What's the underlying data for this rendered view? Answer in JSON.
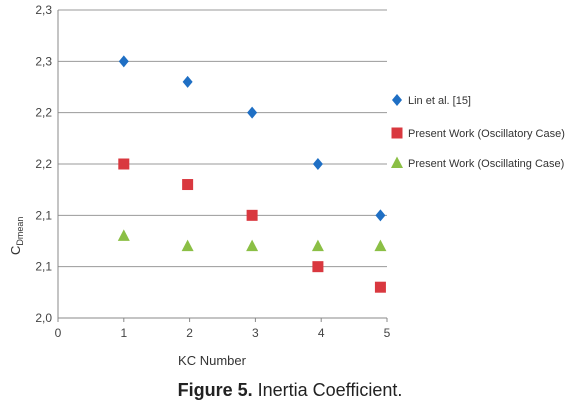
{
  "chart_data": {
    "type": "scatter",
    "xlabel": "KC Number",
    "ylabel_main": "C",
    "ylabel_sub": "Dmean",
    "xlim": [
      0,
      5
    ],
    "ylim": [
      2.0,
      2.3
    ],
    "x_ticks": [
      "0",
      "1",
      "2",
      "3",
      "4",
      "5"
    ],
    "y_ticks": [
      "2,0",
      "2,1",
      "2,1",
      "2,2",
      "2,2",
      "2,3",
      "2,3"
    ],
    "grid": true,
    "legend_position": "right",
    "series": [
      {
        "name": "Lin et al. [15]",
        "marker": "diamond",
        "color": "#1f6fc4",
        "x": [
          1,
          1.97,
          2.95,
          3.95,
          4.9
        ],
        "y": [
          2.25,
          2.23,
          2.2,
          2.15,
          2.1
        ]
      },
      {
        "name": "Present Work (Oscillatory Case)",
        "marker": "square",
        "color": "#d9383f",
        "x": [
          1,
          1.97,
          2.95,
          3.95,
          4.9
        ],
        "y": [
          2.15,
          2.13,
          2.1,
          2.05,
          2.03
        ]
      },
      {
        "name": "Present Work (Oscillating Case)",
        "marker": "triangle",
        "color": "#8bbf45",
        "x": [
          1,
          1.97,
          2.95,
          3.95,
          4.9
        ],
        "y": [
          2.08,
          2.07,
          2.07,
          2.07,
          2.07
        ]
      }
    ]
  },
  "caption": {
    "label": "Figure 5.",
    "text": " Inertia Coefficient."
  }
}
